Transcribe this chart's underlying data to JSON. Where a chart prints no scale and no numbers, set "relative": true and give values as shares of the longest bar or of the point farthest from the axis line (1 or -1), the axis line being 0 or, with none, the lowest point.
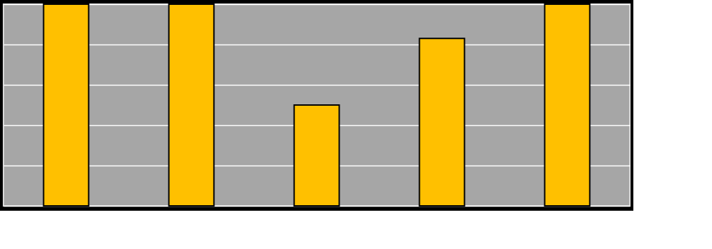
{
  "chart_data": {
    "type": "bar",
    "relative": true,
    "categories": [
      null,
      null,
      null,
      null,
      null
    ],
    "values": [
      1,
      1,
      0.5,
      0.83,
      1
    ],
    "color": "#ffc000",
    "grid": "y"
  }
}
